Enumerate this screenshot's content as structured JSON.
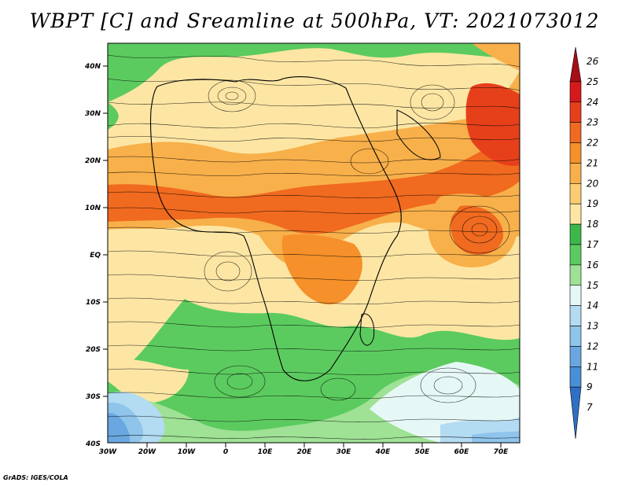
{
  "title": "WBPT [C] and Sreamline at 500hPa, VT: 2021073012",
  "credit": "GrADS: IGES/COLA",
  "lat_labels": [
    "40N",
    "30N",
    "20N",
    "10N",
    "EQ",
    "10S",
    "20S",
    "30S",
    "40S"
  ],
  "lon_labels": [
    "30W",
    "20W",
    "10W",
    "0",
    "10E",
    "20E",
    "30E",
    "40E",
    "50E",
    "60E",
    "70E"
  ],
  "colorbar": {
    "labels": [
      "26",
      "25",
      "24",
      "23",
      "22",
      "21",
      "20",
      "19",
      "18",
      "17",
      "16",
      "15",
      "14",
      "13",
      "12",
      "11",
      "9",
      "7"
    ],
    "colors": [
      "#a50f15",
      "#d7191c",
      "#e6401b",
      "#f06a1f",
      "#f5902a",
      "#f8b04a",
      "#fbcd72",
      "#fde6a4",
      "#3cb84a",
      "#5ccb5f",
      "#9fe195",
      "#e6f8f6",
      "#b3dbf2",
      "#8fc4eb",
      "#6aa7e0",
      "#4a8fd6",
      "#2f6fc4"
    ]
  }
}
